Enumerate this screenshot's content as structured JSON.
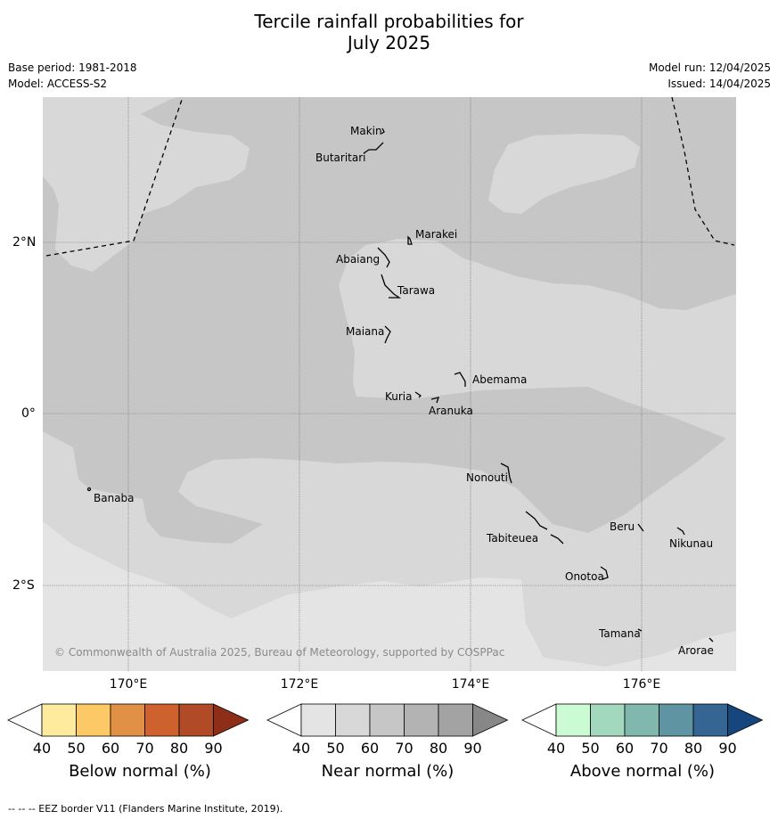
{
  "header": {
    "title_line1": "Tercile rainfall probabilities for",
    "title_line2": "July 2025",
    "base_period": "Base period: 1981-2018",
    "model": "Model: ACCESS-S2",
    "model_run": "Model run: 12/04/2025",
    "issued": "Issued: 14/04/2025"
  },
  "map": {
    "copyright": "© Commonwealth of Australia 2025, Bureau of Meteorology, supported by COSPPac",
    "lon_labels": [
      "170°E",
      "172°E",
      "174°E",
      "176°E"
    ],
    "lat_labels": [
      "2°N",
      "0°",
      "2°S"
    ],
    "places": {
      "makin": "Makin",
      "butaritari": "Butaritari",
      "marakei": "Marakei",
      "abaiang": "Abaiang",
      "tarawa": "Tarawa",
      "maiana": "Maiana",
      "abemama": "Abemama",
      "kuria": "Kuria",
      "aranuka": "Aranuka",
      "nonouti": "Nonouti",
      "banaba": "Banaba",
      "beru": "Beru",
      "nikunau": "Nikunau",
      "tabiteuea": "Tabiteuea",
      "onotoa": "Onotoa",
      "tamana": "Tamana",
      "arorae": "Arorae"
    },
    "colors": {
      "near_40_50": "#d8d8d8",
      "near_50_60": "#c6c6c6",
      "below_40": "#e4e4e4"
    }
  },
  "legend": {
    "ticks": [
      "40",
      "50",
      "60",
      "70",
      "80",
      "90"
    ],
    "below": {
      "title": "Below normal (%)",
      "colors": [
        "#ffffff",
        "#feeb9e",
        "#fdc966",
        "#e09145",
        "#cd622f",
        "#b14a26",
        "#8e2e18"
      ]
    },
    "near": {
      "title": "Near normal (%)",
      "colors": [
        "#ffffff",
        "#e4e4e4",
        "#d8d8d8",
        "#c6c6c6",
        "#b3b3b3",
        "#a3a3a3",
        "#878787"
      ]
    },
    "above": {
      "title": "Above normal (%)",
      "colors": [
        "#ffffff",
        "#cbfbd3",
        "#a2d8bd",
        "#80b8ad",
        "#5f94a2",
        "#346593",
        "#15467e"
      ]
    }
  },
  "footnote": "--  --  -- EEZ border V11 (Flanders Marine Institute, 2019)."
}
